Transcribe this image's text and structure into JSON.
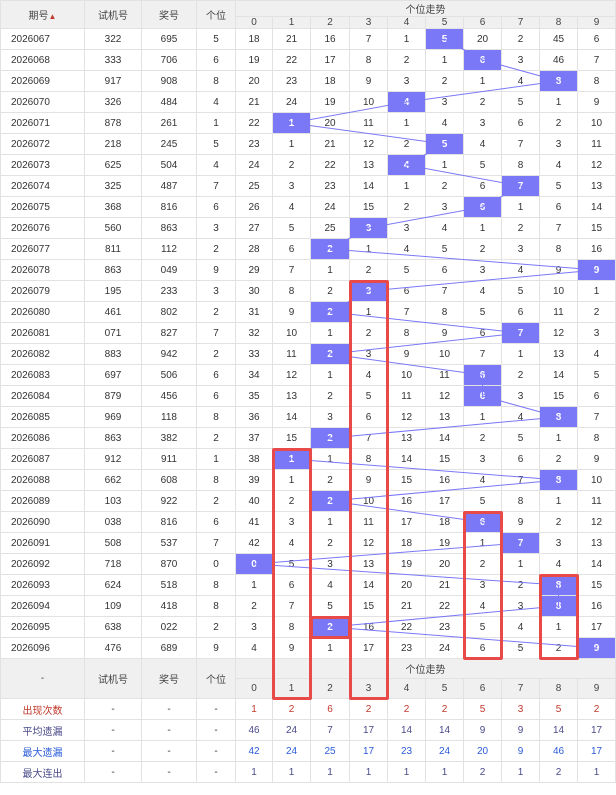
{
  "header": {
    "period": "期号",
    "trial": "试机号",
    "prize": "奖号",
    "unit": "个位",
    "trend": "个位走势",
    "digits": [
      "0",
      "1",
      "2",
      "3",
      "4",
      "5",
      "6",
      "7",
      "8",
      "9"
    ]
  },
  "colors": {
    "ball": "#7b78f7",
    "highlight_box": "#e84a4a"
  },
  "rows": [
    {
      "p": "2026067",
      "t": "322",
      "a": "695",
      "u": 5,
      "c": [
        "18",
        "21",
        "16",
        "7",
        "1",
        "5",
        "20",
        "2",
        "45",
        "6"
      ]
    },
    {
      "p": "2026068",
      "t": "333",
      "a": "706",
      "u": 6,
      "c": [
        "19",
        "22",
        "17",
        "8",
        "2",
        "1",
        "6",
        "3",
        "46",
        "7"
      ]
    },
    {
      "p": "2026069",
      "t": "917",
      "a": "908",
      "u": 8,
      "c": [
        "20",
        "23",
        "18",
        "9",
        "3",
        "2",
        "1",
        "4",
        "8",
        "8"
      ]
    },
    {
      "p": "2026070",
      "t": "326",
      "a": "484",
      "u": 4,
      "c": [
        "21",
        "24",
        "19",
        "10",
        "4",
        "3",
        "2",
        "5",
        "1",
        "9"
      ]
    },
    {
      "p": "2026071",
      "t": "878",
      "a": "261",
      "u": 1,
      "c": [
        "22",
        "1",
        "20",
        "11",
        "1",
        "4",
        "3",
        "6",
        "2",
        "10"
      ]
    },
    {
      "p": "2026072",
      "t": "218",
      "a": "245",
      "u": 5,
      "c": [
        "23",
        "1",
        "21",
        "12",
        "2",
        "5",
        "4",
        "7",
        "3",
        "11"
      ]
    },
    {
      "p": "2026073",
      "t": "625",
      "a": "504",
      "u": 4,
      "c": [
        "24",
        "2",
        "22",
        "13",
        "4",
        "1",
        "5",
        "8",
        "4",
        "12"
      ]
    },
    {
      "p": "2026074",
      "t": "325",
      "a": "487",
      "u": 7,
      "c": [
        "25",
        "3",
        "23",
        "14",
        "1",
        "2",
        "6",
        "7",
        "5",
        "13"
      ]
    },
    {
      "p": "2026075",
      "t": "368",
      "a": "816",
      "u": 6,
      "c": [
        "26",
        "4",
        "24",
        "15",
        "2",
        "3",
        "6",
        "1",
        "6",
        "14"
      ]
    },
    {
      "p": "2026076",
      "t": "560",
      "a": "863",
      "u": 3,
      "c": [
        "27",
        "5",
        "25",
        "3",
        "3",
        "4",
        "1",
        "2",
        "7",
        "15"
      ]
    },
    {
      "p": "2026077",
      "t": "811",
      "a": "112",
      "u": 2,
      "c": [
        "28",
        "6",
        "2",
        "1",
        "4",
        "5",
        "2",
        "3",
        "8",
        "16"
      ]
    },
    {
      "p": "2026078",
      "t": "863",
      "a": "049",
      "u": 9,
      "c": [
        "29",
        "7",
        "1",
        "2",
        "5",
        "6",
        "3",
        "4",
        "9",
        "9"
      ]
    },
    {
      "p": "2026079",
      "t": "195",
      "a": "233",
      "u": 3,
      "c": [
        "30",
        "8",
        "2",
        "3",
        "6",
        "7",
        "4",
        "5",
        "10",
        "1"
      ]
    },
    {
      "p": "2026080",
      "t": "461",
      "a": "802",
      "u": 2,
      "c": [
        "31",
        "9",
        "2",
        "1",
        "7",
        "8",
        "5",
        "6",
        "11",
        "2"
      ]
    },
    {
      "p": "2026081",
      "t": "071",
      "a": "827",
      "u": 7,
      "c": [
        "32",
        "10",
        "1",
        "2",
        "8",
        "9",
        "6",
        "7",
        "12",
        "3"
      ]
    },
    {
      "p": "2026082",
      "t": "883",
      "a": "942",
      "u": 2,
      "c": [
        "33",
        "11",
        "2",
        "3",
        "9",
        "10",
        "7",
        "1",
        "13",
        "4"
      ]
    },
    {
      "p": "2026083",
      "t": "697",
      "a": "506",
      "u": 6,
      "c": [
        "34",
        "12",
        "1",
        "4",
        "10",
        "11",
        "6",
        "2",
        "14",
        "5"
      ]
    },
    {
      "p": "2026084",
      "t": "879",
      "a": "456",
      "u": 6,
      "c": [
        "35",
        "13",
        "2",
        "5",
        "11",
        "12",
        "6",
        "3",
        "15",
        "6"
      ]
    },
    {
      "p": "2026085",
      "t": "969",
      "a": "118",
      "u": 8,
      "c": [
        "36",
        "14",
        "3",
        "6",
        "12",
        "13",
        "1",
        "4",
        "8",
        "7"
      ]
    },
    {
      "p": "2026086",
      "t": "863",
      "a": "382",
      "u": 2,
      "c": [
        "37",
        "15",
        "2",
        "7",
        "13",
        "14",
        "2",
        "5",
        "1",
        "8"
      ]
    },
    {
      "p": "2026087",
      "t": "912",
      "a": "911",
      "u": 1,
      "c": [
        "38",
        "1",
        "1",
        "8",
        "14",
        "15",
        "3",
        "6",
        "2",
        "9"
      ]
    },
    {
      "p": "2026088",
      "t": "662",
      "a": "608",
      "u": 8,
      "c": [
        "39",
        "1",
        "2",
        "9",
        "15",
        "16",
        "4",
        "7",
        "8",
        "10"
      ]
    },
    {
      "p": "2026089",
      "t": "103",
      "a": "922",
      "u": 2,
      "c": [
        "40",
        "2",
        "2",
        "10",
        "16",
        "17",
        "5",
        "8",
        "1",
        "11"
      ]
    },
    {
      "p": "2026090",
      "t": "038",
      "a": "816",
      "u": 6,
      "c": [
        "41",
        "3",
        "1",
        "11",
        "17",
        "18",
        "6",
        "9",
        "2",
        "12"
      ]
    },
    {
      "p": "2026091",
      "t": "508",
      "a": "537",
      "u": 7,
      "c": [
        "42",
        "4",
        "2",
        "12",
        "18",
        "19",
        "1",
        "7",
        "3",
        "13"
      ]
    },
    {
      "p": "2026092",
      "t": "718",
      "a": "870",
      "u": 0,
      "c": [
        "0",
        "5",
        "3",
        "13",
        "19",
        "20",
        "2",
        "1",
        "4",
        "14"
      ]
    },
    {
      "p": "2026093",
      "t": "624",
      "a": "518",
      "u": 8,
      "c": [
        "1",
        "6",
        "4",
        "14",
        "20",
        "21",
        "3",
        "2",
        "8",
        "15"
      ]
    },
    {
      "p": "2026094",
      "t": "109",
      "a": "418",
      "u": 8,
      "c": [
        "2",
        "7",
        "5",
        "15",
        "21",
        "22",
        "4",
        "3",
        "8",
        "16"
      ]
    },
    {
      "p": "2026095",
      "t": "638",
      "a": "022",
      "u": 2,
      "c": [
        "3",
        "8",
        "2",
        "16",
        "22",
        "23",
        "5",
        "4",
        "1",
        "17"
      ]
    },
    {
      "p": "2026096",
      "t": "476",
      "a": "689",
      "u": 9,
      "c": [
        "4",
        "9",
        "1",
        "17",
        "23",
        "24",
        "6",
        "5",
        "2",
        "9"
      ]
    }
  ],
  "footer_header": {
    "dash": "-",
    "trial": "试机号",
    "prize": "奖号",
    "unit": "个位",
    "trend": "个位走势"
  },
  "stats": [
    {
      "label": "出现次数",
      "cls": "stat-red",
      "dash": "-",
      "v": [
        "1",
        "2",
        "6",
        "2",
        "2",
        "2",
        "5",
        "3",
        "5",
        "2"
      ]
    },
    {
      "label": "平均遗漏",
      "cls": "stat-dark",
      "dash": "-",
      "v": [
        "46",
        "24",
        "7",
        "17",
        "14",
        "14",
        "9",
        "9",
        "14",
        "17"
      ]
    },
    {
      "label": "最大遗漏",
      "cls": "stat-blue",
      "dash": "-",
      "v": [
        "42",
        "24",
        "25",
        "17",
        "23",
        "24",
        "20",
        "9",
        "46",
        "17"
      ]
    },
    {
      "label": "最大连出",
      "cls": "stat-dark",
      "dash": "-",
      "v": [
        "1",
        "1",
        "1",
        "1",
        "1",
        "1",
        "2",
        "1",
        "2",
        "1"
      ]
    }
  ]
}
